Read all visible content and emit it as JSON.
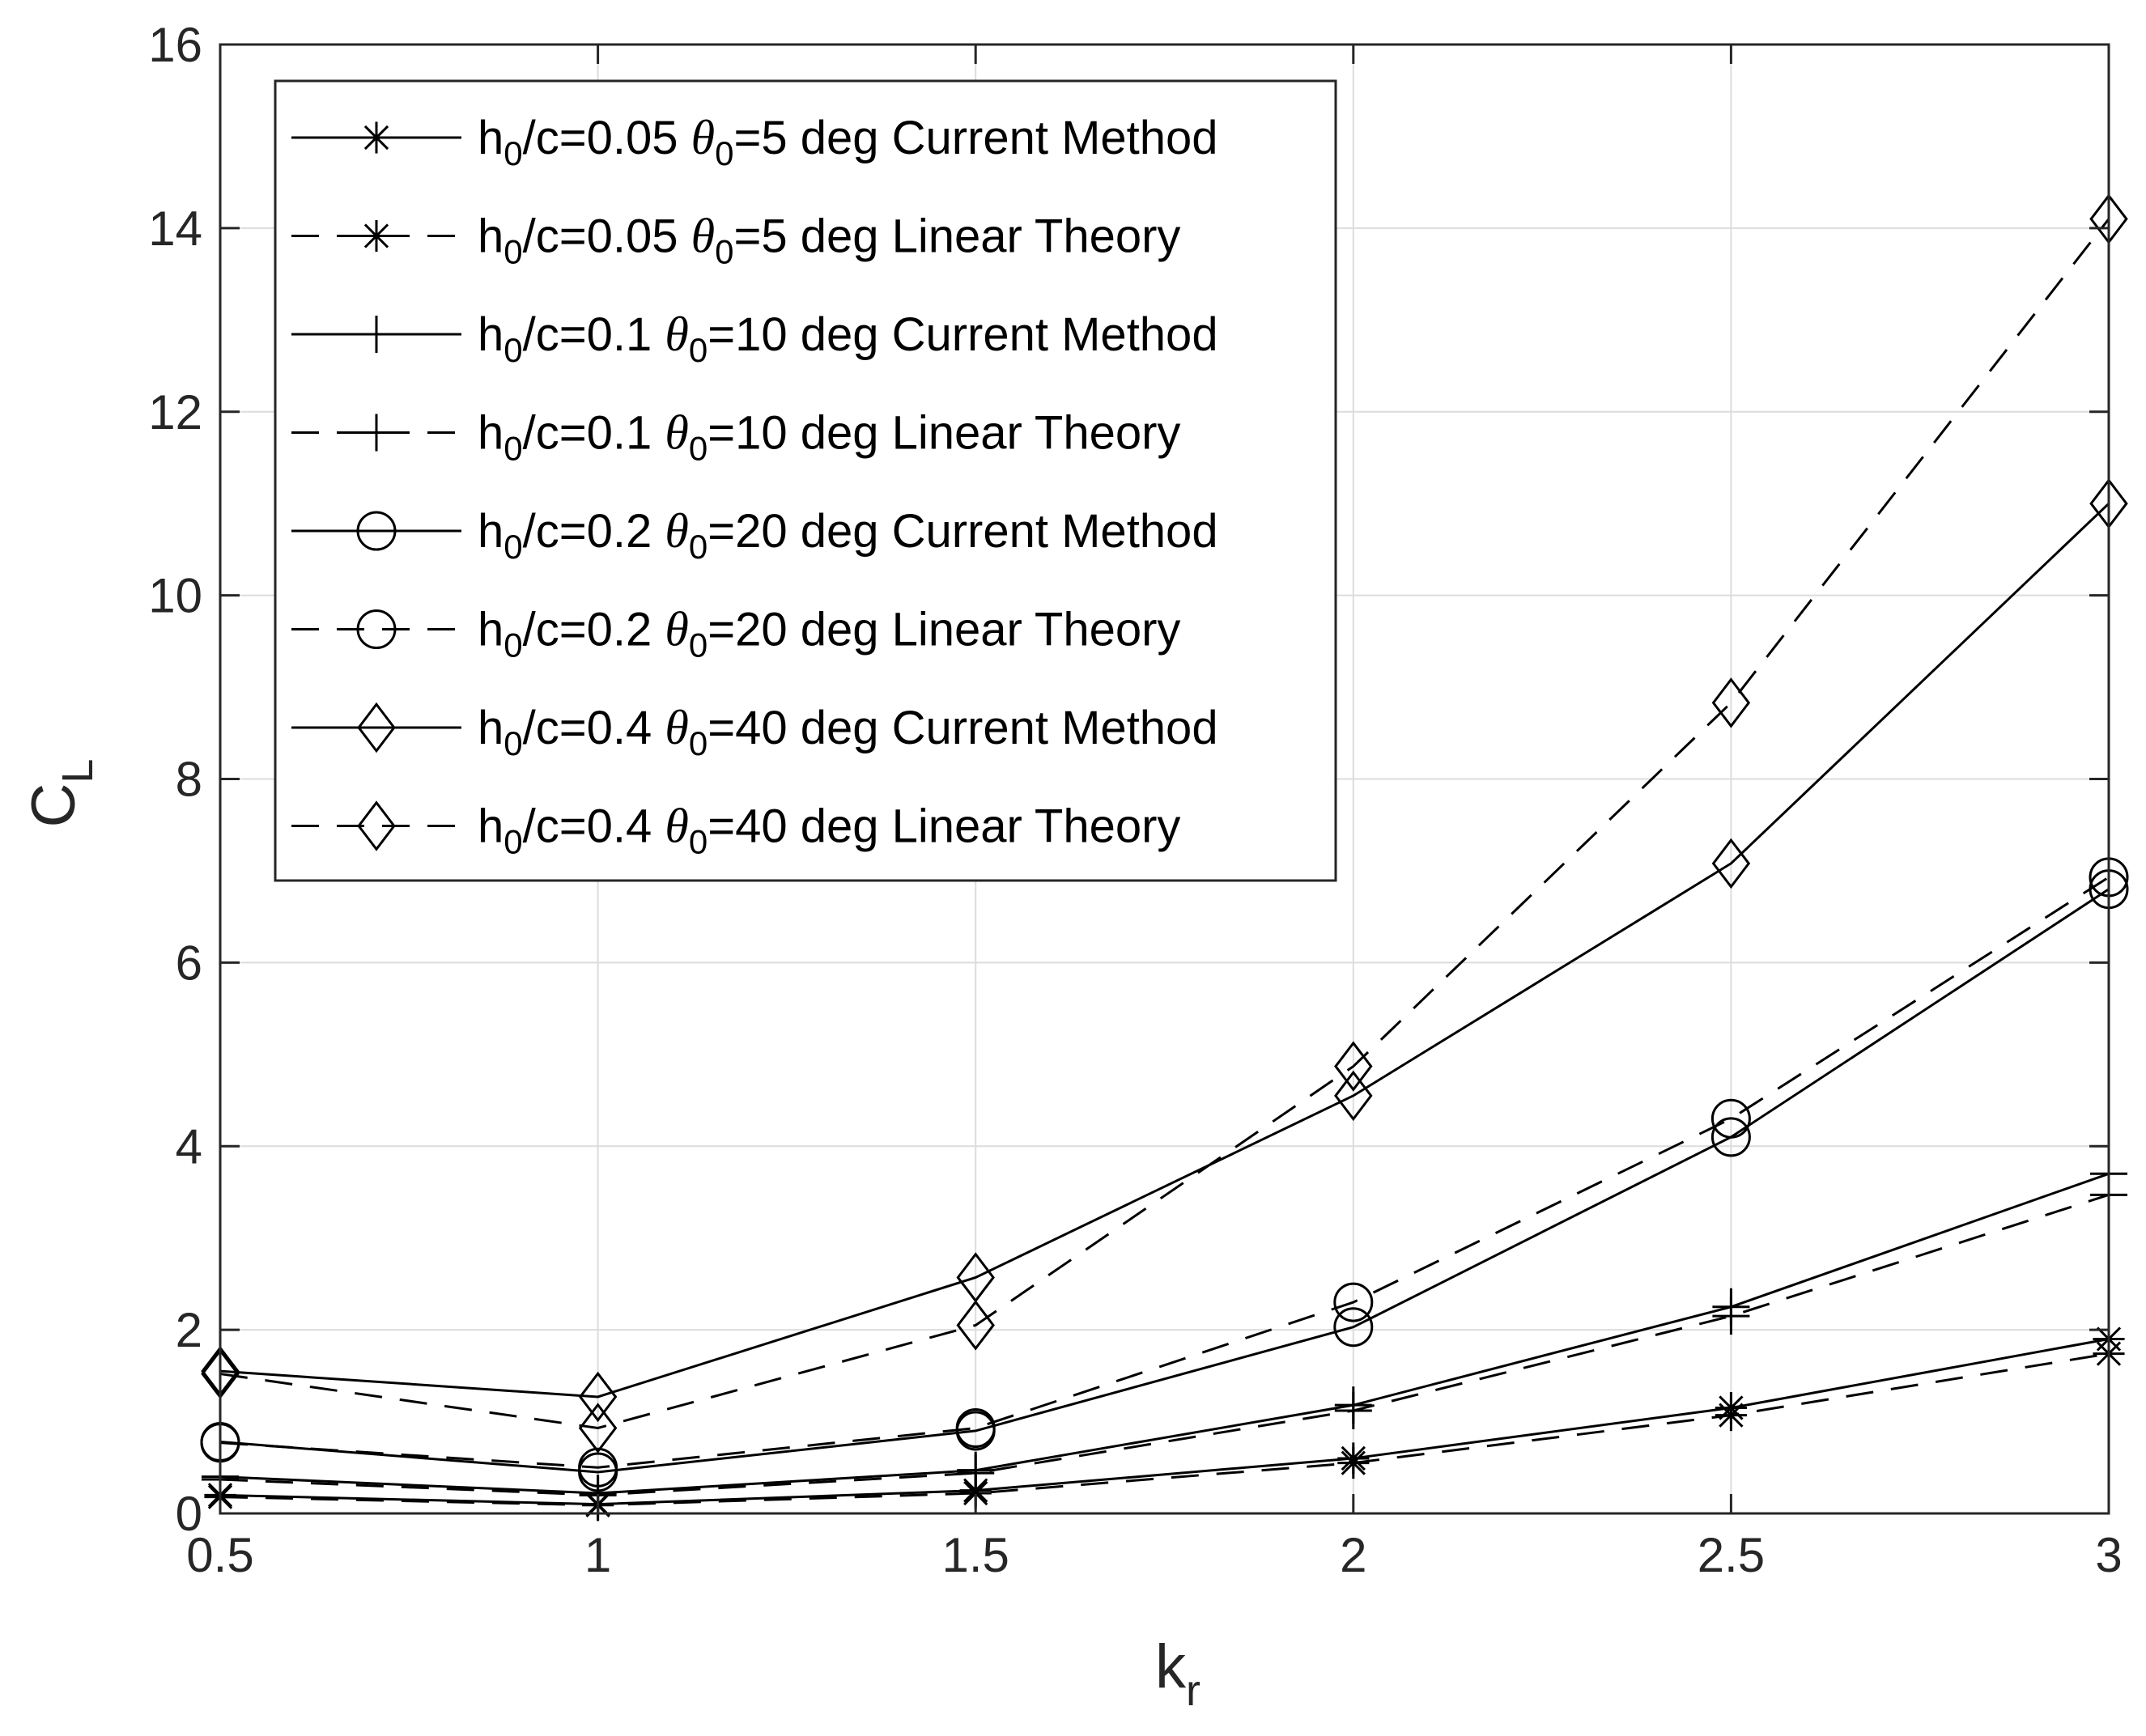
{
  "chart_data": {
    "type": "line",
    "xlabel": "k",
    "xlabel_sub": "r",
    "ylabel": "C",
    "ylabel_sub": "L",
    "xlim": [
      0.5,
      3
    ],
    "ylim": [
      0,
      16
    ],
    "xticks": [
      0.5,
      1,
      1.5,
      2,
      2.5,
      3
    ],
    "yticks": [
      0,
      2,
      4,
      6,
      8,
      10,
      12,
      14,
      16
    ],
    "xtick_labels": [
      "0.5",
      "1",
      "1.5",
      "2",
      "2.5",
      "3"
    ],
    "ytick_labels": [
      "0",
      "2",
      "4",
      "6",
      "8",
      "10",
      "12",
      "14",
      "16"
    ],
    "grid": true,
    "legend_position": "top-left",
    "x": [
      0.5,
      1,
      1.5,
      2,
      2.5,
      3
    ],
    "colors": {
      "line": "#000000",
      "grid": "#dcdcdc",
      "axes": "#262626"
    },
    "series": [
      {
        "h": "h",
        "h_sub": "0",
        "ratio": "/c=0.05",
        "theta": "θ",
        "theta_sub": "0",
        "rest": "=5 deg Current Method",
        "marker": "asterisk",
        "dash": "solid",
        "values": [
          0.2,
          0.1,
          0.25,
          0.6,
          1.15,
          1.9
        ]
      },
      {
        "h": "h",
        "h_sub": "0",
        "ratio": "/c=0.05",
        "theta": "θ",
        "theta_sub": "0",
        "rest": "=5 deg  Linear Theory",
        "marker": "asterisk",
        "dash": "dashed",
        "values": [
          0.18,
          0.09,
          0.22,
          0.55,
          1.07,
          1.74
        ]
      },
      {
        "h": "h",
        "h_sub": "0",
        "ratio": "/c=0.1",
        "theta": "θ",
        "theta_sub": "0",
        "rest": "=10 deg Current Method",
        "marker": "plus",
        "dash": "solid",
        "values": [
          0.4,
          0.22,
          0.47,
          1.18,
          2.25,
          3.7
        ]
      },
      {
        "h": "h",
        "h_sub": "0",
        "ratio": "/c=0.1",
        "theta": "θ",
        "theta_sub": "0",
        "rest": "=10 deg  Linear Theory",
        "marker": "plus",
        "dash": "dashed",
        "values": [
          0.37,
          0.2,
          0.44,
          1.12,
          2.15,
          3.47
        ]
      },
      {
        "h": "h",
        "h_sub": "0",
        "ratio": "/c=0.2",
        "theta": "θ",
        "theta_sub": "0",
        "rest": "=20 deg Current Method",
        "marker": "circle",
        "dash": "solid",
        "values": [
          0.78,
          0.45,
          0.9,
          2.03,
          4.1,
          6.8
        ]
      },
      {
        "h": "h",
        "h_sub": "0",
        "ratio": "/c=0.2",
        "theta": "θ",
        "theta_sub": "0",
        "rest": "=20 deg  Linear Theory",
        "marker": "circle",
        "dash": "dashed",
        "values": [
          0.77,
          0.5,
          0.93,
          2.3,
          4.3,
          6.93
        ]
      },
      {
        "h": "h",
        "h_sub": "0",
        "ratio": "/c=0.4",
        "theta": "θ",
        "theta_sub": "0",
        "rest": "=40 deg Current Method",
        "marker": "diamond",
        "dash": "solid",
        "values": [
          1.55,
          1.27,
          2.57,
          4.55,
          7.08,
          11.0
        ]
      },
      {
        "h": "h",
        "h_sub": "0",
        "ratio": "/c=0.4",
        "theta": "θ",
        "theta_sub": "0",
        "rest": "=40 deg  Linear Theory",
        "marker": "diamond",
        "dash": "dashed",
        "values": [
          1.52,
          0.93,
          2.05,
          4.87,
          8.83,
          14.1
        ]
      }
    ]
  }
}
